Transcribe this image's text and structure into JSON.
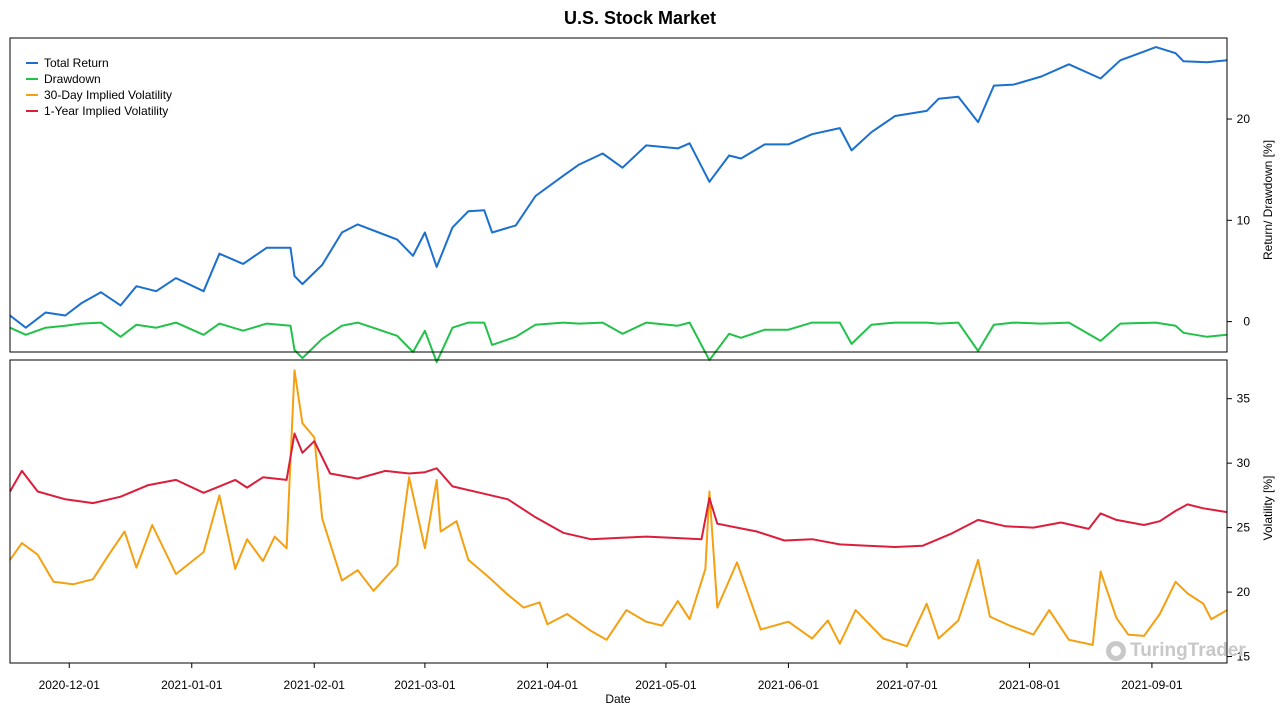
{
  "chart_data": {
    "type": "line",
    "title": "U.S. Stock Market",
    "xlabel": "Date",
    "x_ticks": [
      "2020-12-01",
      "2021-01-01",
      "2021-02-01",
      "2021-03-01",
      "2021-04-01",
      "2021-05-01",
      "2021-06-01",
      "2021-07-01",
      "2021-08-01",
      "2021-09-01"
    ],
    "x_range": [
      "2020-11-16",
      "2021-09-20"
    ],
    "legend_placement": "top-left",
    "panels": [
      {
        "name": "top",
        "ylabel": "Return/ Drawdown [%]",
        "ylim": [
          -3,
          28
        ],
        "y_ticks": [
          0,
          10,
          20
        ]
      },
      {
        "name": "bottom",
        "ylabel": "Volatility [%]",
        "ylim": [
          14.5,
          38
        ],
        "y_ticks": [
          15,
          20,
          25,
          30,
          35
        ]
      }
    ],
    "series": [
      {
        "name": "Total Return",
        "panel": "top",
        "color": "#1a6fcf",
        "points": [
          [
            "2020-11-16",
            0.6
          ],
          [
            "2020-11-20",
            -0.6
          ],
          [
            "2020-11-25",
            0.9
          ],
          [
            "2020-11-30",
            0.6
          ],
          [
            "2020-12-04",
            1.8
          ],
          [
            "2020-12-09",
            2.9
          ],
          [
            "2020-12-14",
            1.6
          ],
          [
            "2020-12-18",
            3.5
          ],
          [
            "2020-12-23",
            3.0
          ],
          [
            "2020-12-28",
            4.3
          ],
          [
            "2021-01-04",
            3.0
          ],
          [
            "2021-01-08",
            6.7
          ],
          [
            "2021-01-14",
            5.7
          ],
          [
            "2021-01-20",
            7.3
          ],
          [
            "2021-01-26",
            7.3
          ],
          [
            "2021-01-27",
            4.5
          ],
          [
            "2021-01-29",
            3.7
          ],
          [
            "2021-02-03",
            5.6
          ],
          [
            "2021-02-08",
            8.8
          ],
          [
            "2021-02-12",
            9.6
          ],
          [
            "2021-02-22",
            8.1
          ],
          [
            "2021-02-26",
            6.5
          ],
          [
            "2021-03-01",
            8.8
          ],
          [
            "2021-03-04",
            5.4
          ],
          [
            "2021-03-08",
            9.3
          ],
          [
            "2021-03-12",
            10.9
          ],
          [
            "2021-03-16",
            11.0
          ],
          [
            "2021-03-18",
            8.8
          ],
          [
            "2021-03-24",
            9.5
          ],
          [
            "2021-03-29",
            12.4
          ],
          [
            "2021-04-05",
            14.4
          ],
          [
            "2021-04-09",
            15.5
          ],
          [
            "2021-04-15",
            16.6
          ],
          [
            "2021-04-20",
            15.2
          ],
          [
            "2021-04-26",
            17.4
          ],
          [
            "2021-05-04",
            17.1
          ],
          [
            "2021-05-07",
            17.6
          ],
          [
            "2021-05-12",
            13.8
          ],
          [
            "2021-05-17",
            16.4
          ],
          [
            "2021-05-20",
            16.1
          ],
          [
            "2021-05-26",
            17.5
          ],
          [
            "2021-06-01",
            17.5
          ],
          [
            "2021-06-07",
            18.5
          ],
          [
            "2021-06-14",
            19.1
          ],
          [
            "2021-06-17",
            16.9
          ],
          [
            "2021-06-22",
            18.7
          ],
          [
            "2021-06-28",
            20.3
          ],
          [
            "2021-07-06",
            20.8
          ],
          [
            "2021-07-09",
            22.0
          ],
          [
            "2021-07-14",
            22.2
          ],
          [
            "2021-07-19",
            19.7
          ],
          [
            "2021-07-23",
            23.3
          ],
          [
            "2021-07-28",
            23.4
          ],
          [
            "2021-08-04",
            24.2
          ],
          [
            "2021-08-11",
            25.4
          ],
          [
            "2021-08-19",
            24.0
          ],
          [
            "2021-08-24",
            25.8
          ],
          [
            "2021-09-02",
            27.1
          ],
          [
            "2021-09-07",
            26.5
          ],
          [
            "2021-09-09",
            25.7
          ],
          [
            "2021-09-15",
            25.6
          ],
          [
            "2021-09-20",
            25.8
          ]
        ]
      },
      {
        "name": "Drawdown",
        "panel": "top",
        "color": "#22c24a",
        "points": [
          [
            "2020-11-16",
            -0.6
          ],
          [
            "2020-11-20",
            -1.3
          ],
          [
            "2020-11-25",
            -0.6
          ],
          [
            "2020-11-30",
            -0.4
          ],
          [
            "2020-12-04",
            -0.2
          ],
          [
            "2020-12-09",
            -0.1
          ],
          [
            "2020-12-14",
            -1.5
          ],
          [
            "2020-12-18",
            -0.3
          ],
          [
            "2020-12-23",
            -0.6
          ],
          [
            "2020-12-28",
            -0.1
          ],
          [
            "2021-01-04",
            -1.3
          ],
          [
            "2021-01-08",
            -0.2
          ],
          [
            "2021-01-14",
            -0.9
          ],
          [
            "2021-01-20",
            -0.2
          ],
          [
            "2021-01-26",
            -0.4
          ],
          [
            "2021-01-27",
            -2.8
          ],
          [
            "2021-01-29",
            -3.6
          ],
          [
            "2021-02-03",
            -1.7
          ],
          [
            "2021-02-08",
            -0.4
          ],
          [
            "2021-02-12",
            -0.1
          ],
          [
            "2021-02-22",
            -1.4
          ],
          [
            "2021-02-26",
            -3.0
          ],
          [
            "2021-03-01",
            -0.9
          ],
          [
            "2021-03-04",
            -4.0
          ],
          [
            "2021-03-08",
            -0.6
          ],
          [
            "2021-03-12",
            -0.1
          ],
          [
            "2021-03-16",
            -0.1
          ],
          [
            "2021-03-18",
            -2.3
          ],
          [
            "2021-03-24",
            -1.5
          ],
          [
            "2021-03-29",
            -0.3
          ],
          [
            "2021-04-05",
            -0.1
          ],
          [
            "2021-04-09",
            -0.2
          ],
          [
            "2021-04-15",
            -0.1
          ],
          [
            "2021-04-20",
            -1.2
          ],
          [
            "2021-04-26",
            -0.1
          ],
          [
            "2021-05-04",
            -0.4
          ],
          [
            "2021-05-07",
            -0.1
          ],
          [
            "2021-05-12",
            -3.8
          ],
          [
            "2021-05-17",
            -1.2
          ],
          [
            "2021-05-20",
            -1.6
          ],
          [
            "2021-05-26",
            -0.8
          ],
          [
            "2021-06-01",
            -0.8
          ],
          [
            "2021-06-07",
            -0.1
          ],
          [
            "2021-06-14",
            -0.1
          ],
          [
            "2021-06-17",
            -2.2
          ],
          [
            "2021-06-22",
            -0.3
          ],
          [
            "2021-06-28",
            -0.1
          ],
          [
            "2021-07-06",
            -0.1
          ],
          [
            "2021-07-09",
            -0.2
          ],
          [
            "2021-07-14",
            -0.1
          ],
          [
            "2021-07-19",
            -2.9
          ],
          [
            "2021-07-23",
            -0.3
          ],
          [
            "2021-07-28",
            -0.1
          ],
          [
            "2021-08-04",
            -0.2
          ],
          [
            "2021-08-11",
            -0.1
          ],
          [
            "2021-08-19",
            -1.9
          ],
          [
            "2021-08-24",
            -0.2
          ],
          [
            "2021-09-02",
            -0.1
          ],
          [
            "2021-09-07",
            -0.4
          ],
          [
            "2021-09-09",
            -1.1
          ],
          [
            "2021-09-15",
            -1.5
          ],
          [
            "2021-09-20",
            -1.3
          ]
        ]
      },
      {
        "name": "30-Day Implied Volatility",
        "panel": "bottom",
        "color": "#f5a011",
        "points": [
          [
            "2020-11-16",
            22.5
          ],
          [
            "2020-11-19",
            23.8
          ],
          [
            "2020-11-23",
            22.9
          ],
          [
            "2020-11-27",
            20.8
          ],
          [
            "2020-12-02",
            20.6
          ],
          [
            "2020-12-07",
            21.0
          ],
          [
            "2020-12-11",
            22.9
          ],
          [
            "2020-12-15",
            24.7
          ],
          [
            "2020-12-18",
            21.9
          ],
          [
            "2020-12-22",
            25.2
          ],
          [
            "2020-12-28",
            21.4
          ],
          [
            "2021-01-04",
            23.1
          ],
          [
            "2021-01-08",
            27.5
          ],
          [
            "2021-01-12",
            21.8
          ],
          [
            "2021-01-15",
            24.1
          ],
          [
            "2021-01-19",
            22.4
          ],
          [
            "2021-01-22",
            24.3
          ],
          [
            "2021-01-25",
            23.4
          ],
          [
            "2021-01-27",
            37.2
          ],
          [
            "2021-01-29",
            33.1
          ],
          [
            "2021-02-01",
            32.0
          ],
          [
            "2021-02-03",
            25.7
          ],
          [
            "2021-02-08",
            20.9
          ],
          [
            "2021-02-12",
            21.7
          ],
          [
            "2021-02-16",
            20.1
          ],
          [
            "2021-02-22",
            22.1
          ],
          [
            "2021-02-25",
            28.9
          ],
          [
            "2021-03-01",
            23.4
          ],
          [
            "2021-03-04",
            28.7
          ],
          [
            "2021-03-05",
            24.7
          ],
          [
            "2021-03-09",
            25.5
          ],
          [
            "2021-03-12",
            22.5
          ],
          [
            "2021-03-17",
            21.2
          ],
          [
            "2021-03-22",
            19.8
          ],
          [
            "2021-03-26",
            18.8
          ],
          [
            "2021-03-30",
            19.2
          ],
          [
            "2021-04-01",
            17.5
          ],
          [
            "2021-04-06",
            18.3
          ],
          [
            "2021-04-12",
            17.0
          ],
          [
            "2021-04-16",
            16.3
          ],
          [
            "2021-04-21",
            18.6
          ],
          [
            "2021-04-26",
            17.7
          ],
          [
            "2021-04-30",
            17.4
          ],
          [
            "2021-05-04",
            19.3
          ],
          [
            "2021-05-07",
            17.9
          ],
          [
            "2021-05-11",
            21.8
          ],
          [
            "2021-05-12",
            27.8
          ],
          [
            "2021-05-14",
            18.8
          ],
          [
            "2021-05-19",
            22.3
          ],
          [
            "2021-05-25",
            17.1
          ],
          [
            "2021-06-01",
            17.7
          ],
          [
            "2021-06-07",
            16.4
          ],
          [
            "2021-06-11",
            17.8
          ],
          [
            "2021-06-14",
            16.0
          ],
          [
            "2021-06-18",
            18.6
          ],
          [
            "2021-06-25",
            16.4
          ],
          [
            "2021-07-01",
            15.8
          ],
          [
            "2021-07-06",
            19.1
          ],
          [
            "2021-07-09",
            16.4
          ],
          [
            "2021-07-14",
            17.8
          ],
          [
            "2021-07-19",
            22.5
          ],
          [
            "2021-07-22",
            18.1
          ],
          [
            "2021-07-27",
            17.4
          ],
          [
            "2021-08-02",
            16.7
          ],
          [
            "2021-08-06",
            18.6
          ],
          [
            "2021-08-11",
            16.3
          ],
          [
            "2021-08-17",
            15.9
          ],
          [
            "2021-08-19",
            21.6
          ],
          [
            "2021-08-23",
            18.0
          ],
          [
            "2021-08-26",
            16.7
          ],
          [
            "2021-08-30",
            16.6
          ],
          [
            "2021-09-03",
            18.3
          ],
          [
            "2021-09-07",
            20.8
          ],
          [
            "2021-09-10",
            19.9
          ],
          [
            "2021-09-14",
            19.1
          ],
          [
            "2021-09-16",
            17.9
          ],
          [
            "2021-09-20",
            18.6
          ]
        ]
      },
      {
        "name": "1-Year Implied Volatility",
        "panel": "bottom",
        "color": "#dc1e3c",
        "points": [
          [
            "2020-11-16",
            27.8
          ],
          [
            "2020-11-19",
            29.4
          ],
          [
            "2020-11-23",
            27.8
          ],
          [
            "2020-11-30",
            27.2
          ],
          [
            "2020-12-07",
            26.9
          ],
          [
            "2020-12-14",
            27.4
          ],
          [
            "2020-12-21",
            28.3
          ],
          [
            "2020-12-28",
            28.7
          ],
          [
            "2021-01-04",
            27.7
          ],
          [
            "2021-01-08",
            28.2
          ],
          [
            "2021-01-12",
            28.7
          ],
          [
            "2021-01-15",
            28.1
          ],
          [
            "2021-01-19",
            28.9
          ],
          [
            "2021-01-25",
            28.7
          ],
          [
            "2021-01-27",
            32.3
          ],
          [
            "2021-01-29",
            30.8
          ],
          [
            "2021-02-01",
            31.7
          ],
          [
            "2021-02-05",
            29.2
          ],
          [
            "2021-02-12",
            28.8
          ],
          [
            "2021-02-19",
            29.4
          ],
          [
            "2021-02-25",
            29.2
          ],
          [
            "2021-03-01",
            29.3
          ],
          [
            "2021-03-04",
            29.6
          ],
          [
            "2021-03-08",
            28.2
          ],
          [
            "2021-03-15",
            27.7
          ],
          [
            "2021-03-22",
            27.2
          ],
          [
            "2021-03-29",
            25.8
          ],
          [
            "2021-04-05",
            24.6
          ],
          [
            "2021-04-12",
            24.1
          ],
          [
            "2021-04-19",
            24.2
          ],
          [
            "2021-04-26",
            24.3
          ],
          [
            "2021-05-03",
            24.2
          ],
          [
            "2021-05-10",
            24.1
          ],
          [
            "2021-05-12",
            27.3
          ],
          [
            "2021-05-14",
            25.3
          ],
          [
            "2021-05-19",
            25.0
          ],
          [
            "2021-05-24",
            24.7
          ],
          [
            "2021-05-31",
            24.0
          ],
          [
            "2021-06-07",
            24.1
          ],
          [
            "2021-06-14",
            23.7
          ],
          [
            "2021-06-21",
            23.6
          ],
          [
            "2021-06-28",
            23.5
          ],
          [
            "2021-07-05",
            23.6
          ],
          [
            "2021-07-12",
            24.5
          ],
          [
            "2021-07-19",
            25.6
          ],
          [
            "2021-07-26",
            25.1
          ],
          [
            "2021-08-02",
            25.0
          ],
          [
            "2021-08-09",
            25.4
          ],
          [
            "2021-08-16",
            24.9
          ],
          [
            "2021-08-19",
            26.1
          ],
          [
            "2021-08-23",
            25.6
          ],
          [
            "2021-08-30",
            25.2
          ],
          [
            "2021-09-03",
            25.5
          ],
          [
            "2021-09-07",
            26.3
          ],
          [
            "2021-09-10",
            26.8
          ],
          [
            "2021-09-14",
            26.5
          ],
          [
            "2021-09-20",
            26.2
          ]
        ]
      }
    ]
  },
  "watermark": "TuringTrader"
}
